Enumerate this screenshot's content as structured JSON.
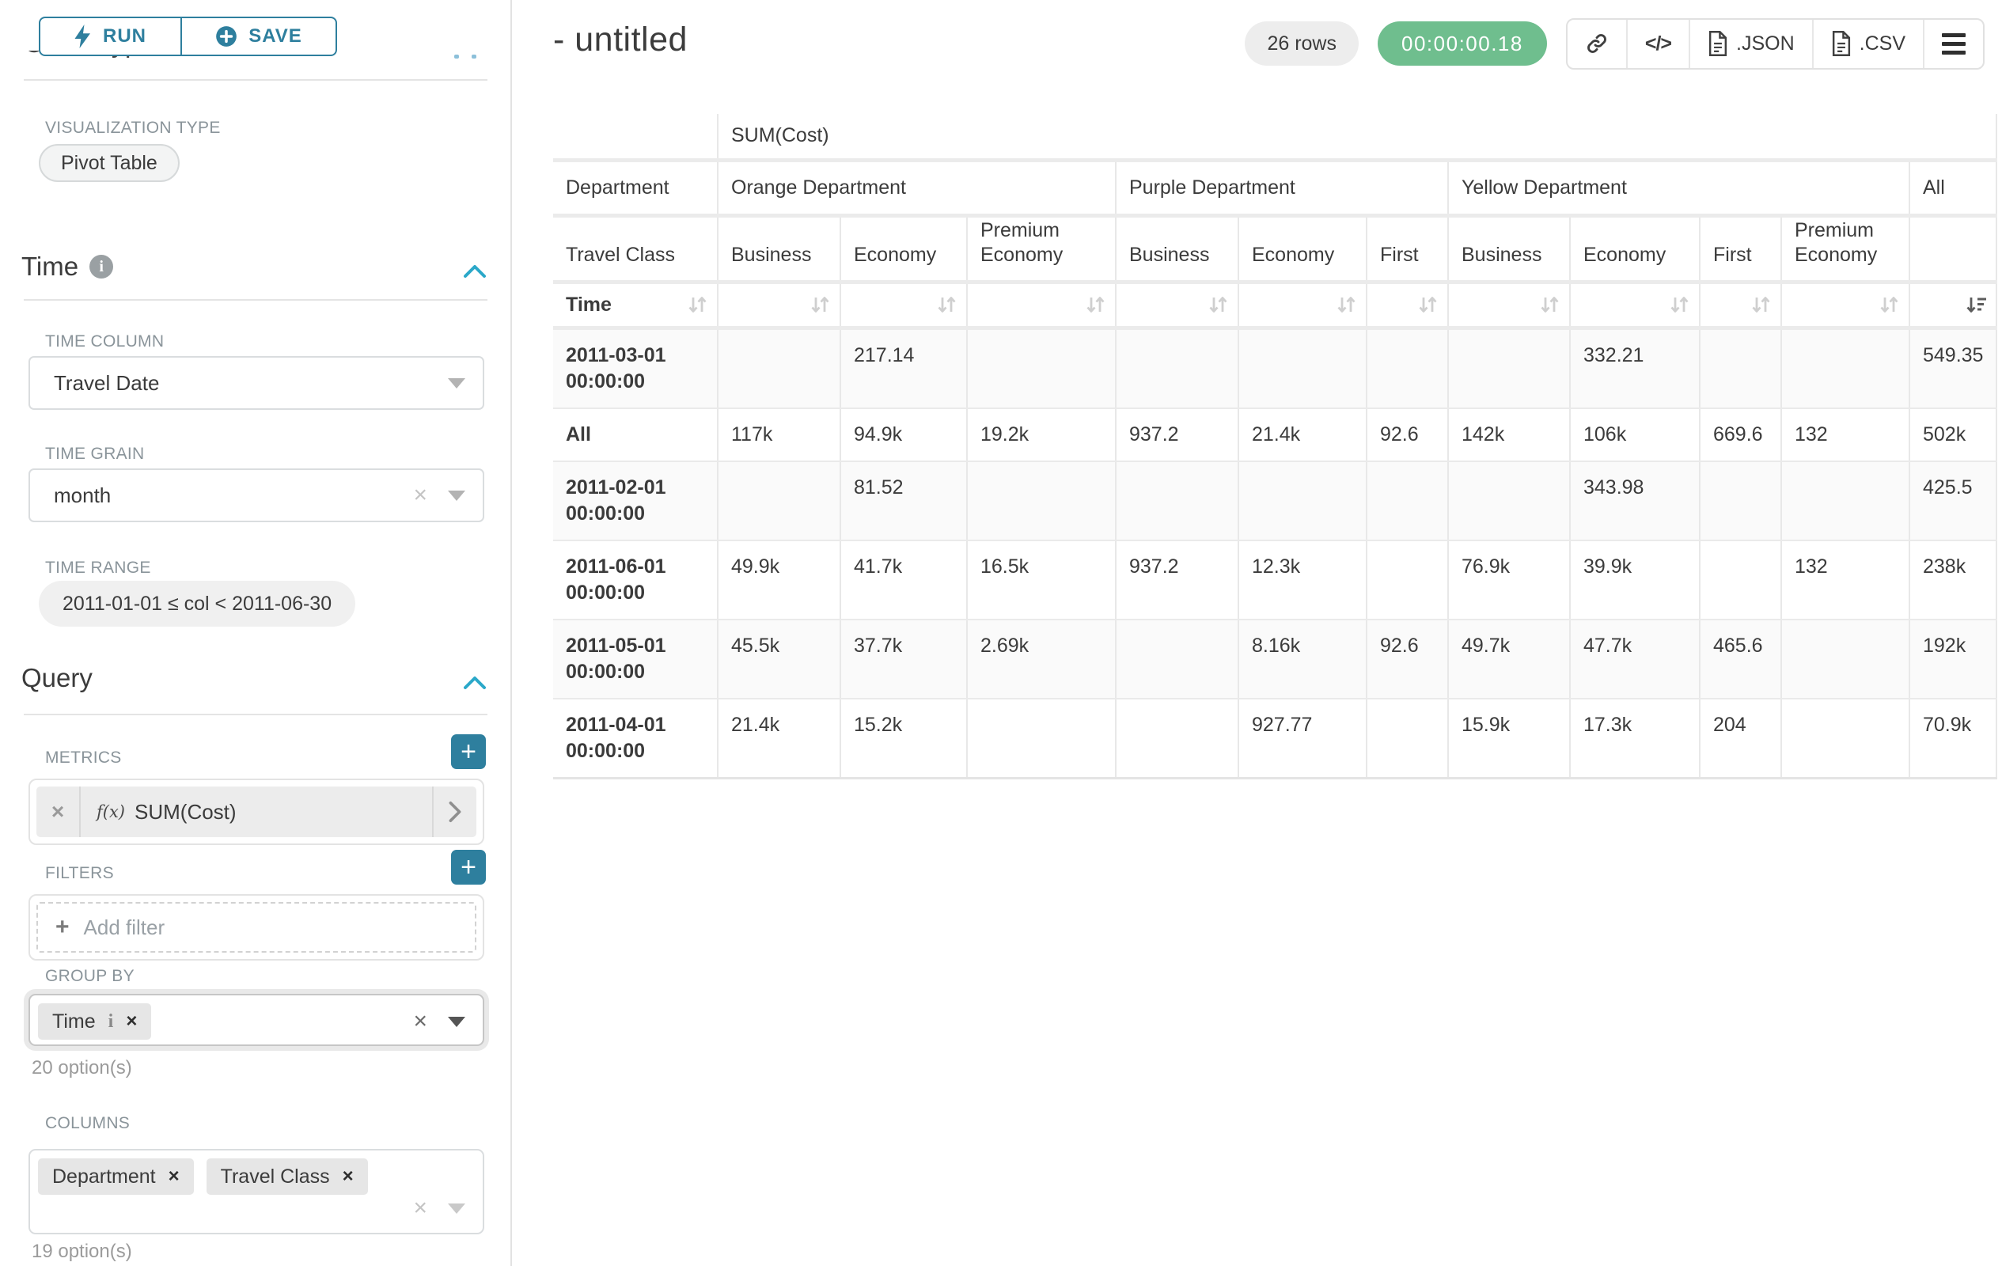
{
  "colors": {
    "accent_teal": "#2e7f9e",
    "chevron_teal": "#2ba8c9",
    "success_green": "#6fbe8e"
  },
  "toolbar": {
    "run_label": "RUN",
    "save_label": "SAVE"
  },
  "sidebar": {
    "chart_type_heading": "Chart Type",
    "visualization_type_label": "VISUALIZATION TYPE",
    "visualization_type_value": "Pivot Table",
    "time_section_label": "Time",
    "time_column_label": "TIME COLUMN",
    "time_column_value": "Travel Date",
    "time_grain_label": "TIME GRAIN",
    "time_grain_value": "month",
    "time_range_label": "TIME RANGE",
    "time_range_value": "2011-01-01 ≤ col < 2011-06-30",
    "query_section_label": "Query",
    "metrics_label": "METRICS",
    "metric_fx": "f(x)",
    "metric_value": "SUM(Cost)",
    "filters_label": "FILTERS",
    "add_filter_label": "Add filter",
    "group_by_label": "GROUP BY",
    "group_by_chips": [
      {
        "label": "Time",
        "has_info": true
      }
    ],
    "group_by_hint": "20 option(s)",
    "columns_label": "COLUMNS",
    "columns_chips": [
      {
        "label": "Department"
      },
      {
        "label": "Travel Class"
      }
    ],
    "columns_hint": "19 option(s)"
  },
  "header": {
    "title": "- untitled",
    "row_count_badge": "26 rows",
    "timer_badge": "00:00:00.18",
    "export_buttons": [
      {
        "name": "share-link",
        "icon": "link",
        "label": ""
      },
      {
        "name": "embed-code",
        "icon": "code",
        "label": ""
      },
      {
        "name": "export-json",
        "icon": "file",
        "label": ".JSON"
      },
      {
        "name": "export-csv",
        "icon": "file",
        "label": ".CSV"
      },
      {
        "name": "more-menu",
        "icon": "menu",
        "label": ""
      }
    ]
  },
  "pivot": {
    "metric_header": "SUM(Cost)",
    "row_dimension_label": "Department",
    "column_dimension_label": "Travel Class",
    "row_axis_label": "Time",
    "column_groups": [
      {
        "label": "Orange Department",
        "children": [
          "Business",
          "Economy",
          "Premium Economy"
        ]
      },
      {
        "label": "Purple Department",
        "children": [
          "Business",
          "Economy",
          "First"
        ]
      },
      {
        "label": "Yellow Department",
        "children": [
          "Business",
          "Economy",
          "First",
          "Premium Economy"
        ]
      },
      {
        "label": "All",
        "children": [
          ""
        ]
      }
    ],
    "sort": {
      "active_column_index": 10,
      "direction": "descending"
    },
    "rows": [
      {
        "label": "2011-03-01 00:00:00",
        "values": [
          "",
          "217.14",
          "",
          "",
          "",
          "",
          "",
          "332.21",
          "",
          "",
          "549.35"
        ]
      },
      {
        "label": "All",
        "values": [
          "117k",
          "94.9k",
          "19.2k",
          "937.2",
          "21.4k",
          "92.6",
          "142k",
          "106k",
          "669.6",
          "132",
          "502k"
        ]
      },
      {
        "label": "2011-02-01 00:00:00",
        "values": [
          "",
          "81.52",
          "",
          "",
          "",
          "",
          "",
          "343.98",
          "",
          "",
          "425.5"
        ]
      },
      {
        "label": "2011-06-01 00:00:00",
        "values": [
          "49.9k",
          "41.7k",
          "16.5k",
          "937.2",
          "12.3k",
          "",
          "76.9k",
          "39.9k",
          "",
          "132",
          "238k"
        ]
      },
      {
        "label": "2011-05-01 00:00:00",
        "values": [
          "45.5k",
          "37.7k",
          "2.69k",
          "",
          "8.16k",
          "92.6",
          "49.7k",
          "47.7k",
          "465.6",
          "",
          "192k"
        ]
      },
      {
        "label": "2011-04-01 00:00:00",
        "values": [
          "21.4k",
          "15.2k",
          "",
          "",
          "927.77",
          "",
          "15.9k",
          "17.3k",
          "204",
          "",
          "70.9k"
        ]
      }
    ]
  }
}
